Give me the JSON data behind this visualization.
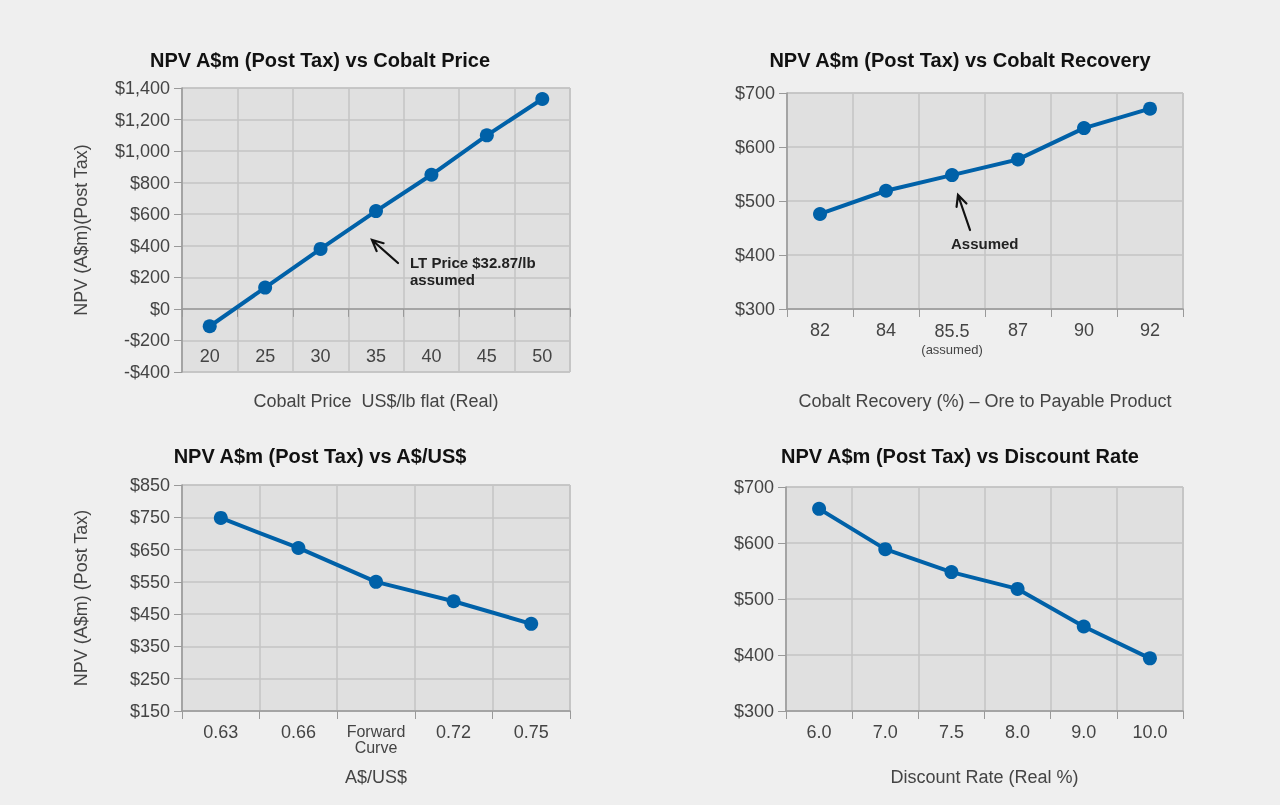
{
  "chart_data": [
    {
      "type": "line",
      "title": "NPV A$m (Post Tax) vs Cobalt Price",
      "xlabel": "Cobalt Price  US$/lb flat (Real)",
      "ylabel": "NPV (A$m)(Post Tax)",
      "categories": [
        "20",
        "25",
        "30",
        "35",
        "40",
        "45",
        "50"
      ],
      "series": [
        {
          "color": "#0061a8",
          "values": [
            -110,
            135,
            380,
            620,
            850,
            1100,
            1330
          ]
        }
      ],
      "ylim": [
        -400,
        1400
      ],
      "yticks": [
        {
          "value": -400,
          "label": "-$400"
        },
        {
          "value": -200,
          "label": "-$200"
        },
        {
          "value": 0,
          "label": "$0"
        },
        {
          "value": 200,
          "label": "$200"
        },
        {
          "value": 400,
          "label": "$400"
        },
        {
          "value": 600,
          "label": "$600"
        },
        {
          "value": 800,
          "label": "$800"
        },
        {
          "value": 1000,
          "label": "$1,000"
        },
        {
          "value": 1200,
          "label": "$1,200"
        },
        {
          "value": 1400,
          "label": "$1,400"
        }
      ],
      "grid": true,
      "marker": "circle",
      "annotations": [
        "LT Price $32.87/lb assumed"
      ]
    },
    {
      "type": "line",
      "title": "NPV A$m (Post Tax) vs Cobalt Recovery",
      "xlabel": "Cobalt Recovery (%) – Ore to Payable Product",
      "categories": [
        "82",
        "84",
        "85.5\n(assumed)",
        "87",
        "90",
        "92"
      ],
      "series": [
        {
          "color": "#0061a8",
          "values": [
            476,
            519,
            548,
            577,
            635,
            671
          ]
        }
      ],
      "ylim": [
        300,
        700
      ],
      "yticks": [
        {
          "value": 300,
          "label": "$300"
        },
        {
          "value": 400,
          "label": "$400"
        },
        {
          "value": 500,
          "label": "$500"
        },
        {
          "value": 600,
          "label": "$600"
        },
        {
          "value": 700,
          "label": "$700"
        }
      ],
      "grid": true,
      "marker": "circle",
      "annotations": [
        "Assumed"
      ]
    },
    {
      "type": "line",
      "title": "NPV A$m (Post Tax) vs A$/US$",
      "xlabel": "A$/US$",
      "ylabel": "NPV (A$m) (Post Tax)",
      "categories": [
        "0.63",
        "0.66",
        "Forward\nCurve",
        "0.72",
        "0.75"
      ],
      "series": [
        {
          "color": "#0061a8",
          "values": [
            748,
            655,
            550,
            490,
            420
          ]
        }
      ],
      "ylim": [
        150,
        850
      ],
      "yticks": [
        {
          "value": 150,
          "label": "$150"
        },
        {
          "value": 250,
          "label": "$250"
        },
        {
          "value": 350,
          "label": "$350"
        },
        {
          "value": 450,
          "label": "$450"
        },
        {
          "value": 550,
          "label": "$550"
        },
        {
          "value": 650,
          "label": "$650"
        },
        {
          "value": 750,
          "label": "$750"
        },
        {
          "value": 850,
          "label": "$850"
        }
      ],
      "grid": true,
      "marker": "circle"
    },
    {
      "type": "line",
      "title": "NPV A$m (Post Tax) vs Discount Rate",
      "xlabel": "Discount Rate (Real %)",
      "categories": [
        "6.0",
        "7.0",
        "7.5",
        "8.0",
        "9.0",
        "10.0"
      ],
      "series": [
        {
          "color": "#0061a8",
          "values": [
            661,
            589,
            548,
            518,
            451,
            394
          ]
        }
      ],
      "ylim": [
        300,
        700
      ],
      "yticks": [
        {
          "value": 300,
          "label": "$300"
        },
        {
          "value": 400,
          "label": "$400"
        },
        {
          "value": 500,
          "label": "$500"
        },
        {
          "value": 600,
          "label": "$600"
        },
        {
          "value": 700,
          "label": "$700"
        }
      ],
      "grid": true,
      "marker": "circle"
    }
  ]
}
